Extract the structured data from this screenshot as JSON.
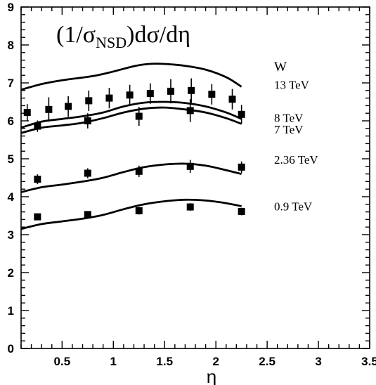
{
  "chart_data": {
    "type": "scatter",
    "title": {
      "prefix": "(1/",
      "sigma": "σ",
      "subscript": "NSD",
      "suffix": ")dσ/dη"
    },
    "xlabel": "η",
    "ylabel": "",
    "xlim": [
      0.1,
      3.5
    ],
    "ylim": [
      0,
      9
    ],
    "xticks_major": [
      0.5,
      1,
      1.5,
      2,
      2.5,
      3,
      3.5
    ],
    "xtick_labels": [
      "0.5",
      "1",
      "1.5",
      "2",
      "2.5",
      "3",
      "3.5"
    ],
    "yticks_major": [
      0,
      1,
      2,
      3,
      4,
      5,
      6,
      7,
      8,
      9
    ],
    "ytick_labels": [
      "0",
      "1",
      "2",
      "3",
      "4",
      "5",
      "6",
      "7",
      "8",
      "9"
    ],
    "legend_header": "W",
    "grid": false,
    "series": [
      {
        "name": "13 TeV",
        "label_y": 6.95,
        "curve": [
          [
            0.1,
            6.82
          ],
          [
            0.3,
            6.97
          ],
          [
            0.5,
            7.07
          ],
          [
            0.8,
            7.18
          ],
          [
            1.0,
            7.3
          ],
          [
            1.2,
            7.44
          ],
          [
            1.35,
            7.5
          ],
          [
            1.5,
            7.5
          ],
          [
            1.7,
            7.45
          ],
          [
            1.9,
            7.35
          ],
          [
            2.1,
            7.15
          ],
          [
            2.25,
            6.9
          ]
        ],
        "points": []
      },
      {
        "name": "8 TeV",
        "label_y": 6.08,
        "curve": [
          [
            0.1,
            5.82
          ],
          [
            0.3,
            5.98
          ],
          [
            0.5,
            6.05
          ],
          [
            0.7,
            6.12
          ],
          [
            0.9,
            6.22
          ],
          [
            1.1,
            6.38
          ],
          [
            1.3,
            6.48
          ],
          [
            1.5,
            6.5
          ],
          [
            1.7,
            6.47
          ],
          [
            1.9,
            6.38
          ],
          [
            2.1,
            6.22
          ],
          [
            2.25,
            6.05
          ]
        ],
        "points": [
          {
            "x": 0.16,
            "y": 6.22,
            "err": 0.22
          },
          {
            "x": 0.37,
            "y": 6.3,
            "err": 0.32
          },
          {
            "x": 0.56,
            "y": 6.38,
            "err": 0.27
          },
          {
            "x": 0.76,
            "y": 6.53,
            "err": 0.27
          },
          {
            "x": 0.96,
            "y": 6.6,
            "err": 0.27
          },
          {
            "x": 1.16,
            "y": 6.68,
            "err": 0.27
          },
          {
            "x": 1.36,
            "y": 6.72,
            "err": 0.27
          },
          {
            "x": 1.56,
            "y": 6.78,
            "err": 0.32
          },
          {
            "x": 1.76,
            "y": 6.8,
            "err": 0.32
          },
          {
            "x": 1.96,
            "y": 6.7,
            "err": 0.27
          },
          {
            "x": 2.16,
            "y": 6.57,
            "err": 0.27
          }
        ]
      },
      {
        "name": "7 TeV",
        "label_y": 5.78,
        "curve": [
          [
            0.1,
            5.68
          ],
          [
            0.3,
            5.82
          ],
          [
            0.5,
            5.88
          ],
          [
            0.7,
            5.95
          ],
          [
            0.9,
            6.07
          ],
          [
            1.1,
            6.22
          ],
          [
            1.3,
            6.32
          ],
          [
            1.5,
            6.35
          ],
          [
            1.7,
            6.3
          ],
          [
            1.9,
            6.22
          ],
          [
            2.1,
            6.07
          ],
          [
            2.25,
            5.92
          ]
        ],
        "points": [
          {
            "x": 0.26,
            "y": 5.86,
            "err": 0.15
          },
          {
            "x": 0.75,
            "y": 6.0,
            "err": 0.2
          },
          {
            "x": 1.25,
            "y": 6.12,
            "err": 0.25
          },
          {
            "x": 1.75,
            "y": 6.27,
            "err": 0.3
          },
          {
            "x": 2.25,
            "y": 6.17,
            "err": 0.25
          }
        ]
      },
      {
        "name": "2.36 TeV",
        "label_y": 4.98,
        "curve": [
          [
            0.1,
            4.12
          ],
          [
            0.3,
            4.25
          ],
          [
            0.5,
            4.32
          ],
          [
            0.7,
            4.4
          ],
          [
            0.9,
            4.5
          ],
          [
            1.1,
            4.65
          ],
          [
            1.3,
            4.78
          ],
          [
            1.5,
            4.85
          ],
          [
            1.7,
            4.87
          ],
          [
            1.9,
            4.82
          ],
          [
            2.1,
            4.7
          ],
          [
            2.25,
            4.6
          ]
        ],
        "points": [
          {
            "x": 0.26,
            "y": 4.46,
            "err": 0.13
          },
          {
            "x": 0.75,
            "y": 4.62,
            "err": 0.13
          },
          {
            "x": 1.25,
            "y": 4.67,
            "err": 0.15
          },
          {
            "x": 1.75,
            "y": 4.8,
            "err": 0.17
          },
          {
            "x": 2.25,
            "y": 4.78,
            "err": 0.15
          }
        ]
      },
      {
        "name": "0.9 TeV",
        "label_y": 3.75,
        "curve": [
          [
            0.1,
            3.15
          ],
          [
            0.3,
            3.28
          ],
          [
            0.5,
            3.35
          ],
          [
            0.7,
            3.42
          ],
          [
            0.9,
            3.52
          ],
          [
            1.1,
            3.67
          ],
          [
            1.3,
            3.8
          ],
          [
            1.5,
            3.88
          ],
          [
            1.7,
            3.92
          ],
          [
            1.9,
            3.9
          ],
          [
            2.1,
            3.83
          ],
          [
            2.25,
            3.75
          ]
        ],
        "points": [
          {
            "x": 0.26,
            "y": 3.47,
            "err": 0.09
          },
          {
            "x": 0.75,
            "y": 3.53,
            "err": 0.09
          },
          {
            "x": 1.25,
            "y": 3.63,
            "err": 0.1
          },
          {
            "x": 1.75,
            "y": 3.73,
            "err": 0.1
          },
          {
            "x": 2.25,
            "y": 3.61,
            "err": 0.1
          }
        ]
      }
    ]
  }
}
